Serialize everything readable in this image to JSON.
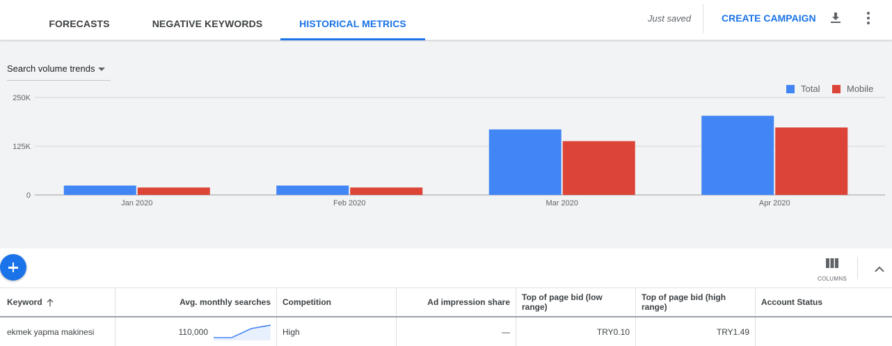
{
  "tabs": [
    {
      "label": "FORECASTS",
      "active": false
    },
    {
      "label": "NEGATIVE KEYWORDS",
      "active": false
    },
    {
      "label": "HISTORICAL METRICS",
      "active": true
    }
  ],
  "header": {
    "status_text": "Just saved",
    "create_label": "CREATE CAMPAIGN",
    "download_icon": "download-icon",
    "more_icon": "more-vert-icon"
  },
  "chart_selector": {
    "value": "Search volume trends"
  },
  "legend": [
    {
      "label": "Total",
      "color": "#4285f4"
    },
    {
      "label": "Mobile",
      "color": "#db4437"
    }
  ],
  "chart_data": {
    "type": "bar",
    "categories": [
      "Jan 2020",
      "Feb 2020",
      "Mar 2020",
      "Apr 2020"
    ],
    "series": [
      {
        "name": "Total",
        "color": "#4285f4",
        "values": [
          24000,
          24000,
          168000,
          203000
        ]
      },
      {
        "name": "Mobile",
        "color": "#db4437",
        "values": [
          19000,
          19000,
          138000,
          173000
        ]
      }
    ],
    "ylim": [
      0,
      250000
    ],
    "yticks": [
      0,
      125000,
      250000
    ],
    "ytick_labels": [
      "0",
      "125K",
      "250K"
    ],
    "grid": true,
    "legend_position": "top-right"
  },
  "toolbar": {
    "add_icon": "add-icon",
    "columns_label": "COLUMNS",
    "columns_icon": "columns-icon",
    "collapse_icon": "chevron-up-icon"
  },
  "table": {
    "columns": [
      "Keyword",
      "Avg. monthly searches",
      "Competition",
      "Ad impression share",
      "Top of page bid (low range)",
      "Top of page bid (high range)",
      "Account Status"
    ],
    "rows": [
      {
        "keyword": "ekmek yapma makinesi",
        "avg_searches": "110,000",
        "competition": "High",
        "impression_share": "—",
        "bid_low": "TRY0.10",
        "bid_high": "TRY1.49",
        "account_status": ""
      }
    ]
  }
}
